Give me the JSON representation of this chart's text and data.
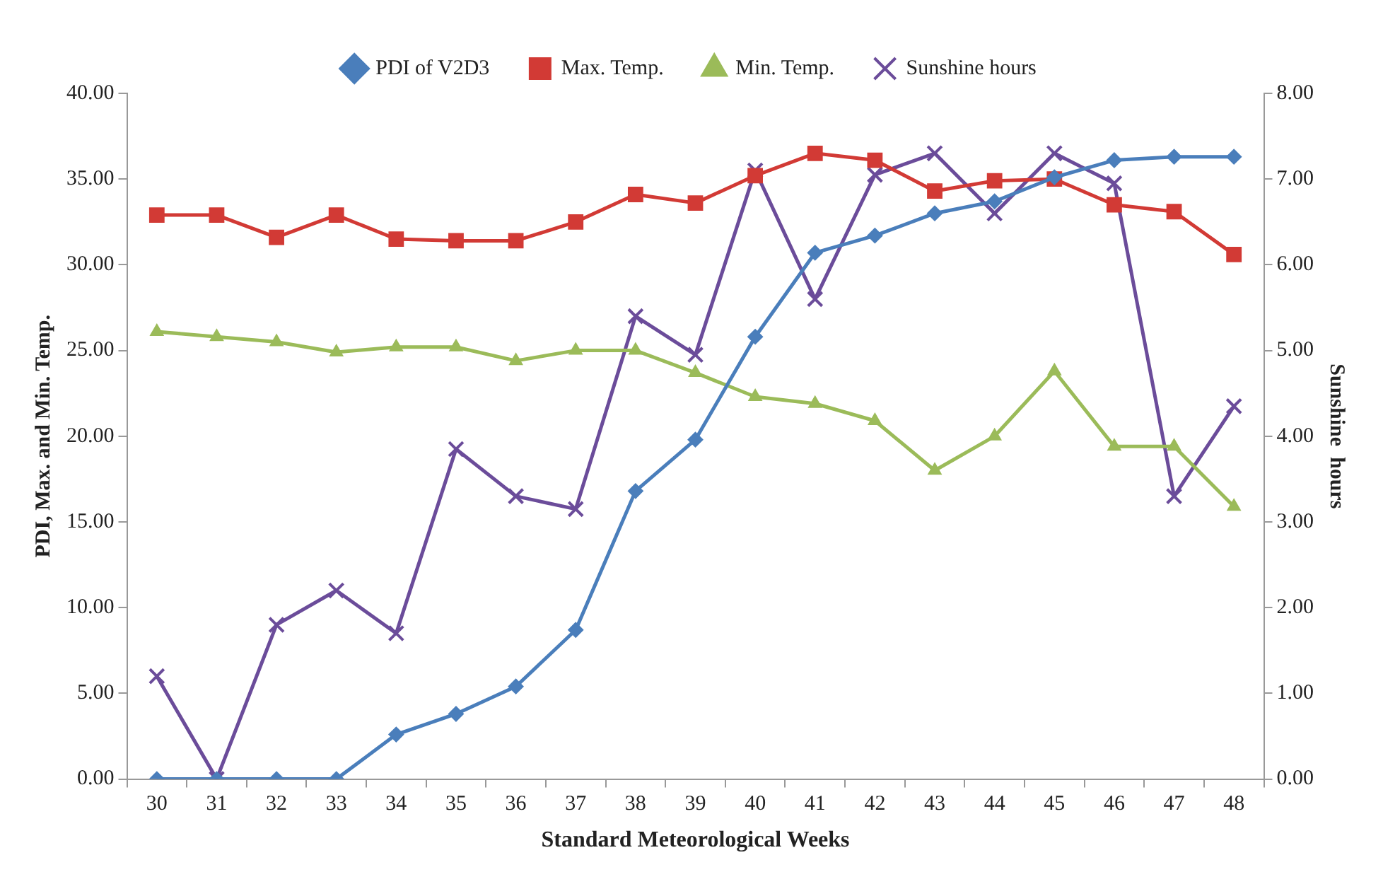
{
  "chart_data": {
    "type": "line",
    "xlabel": "Standard Meteorological Weeks",
    "ylabel": "PDI, Max. and Min. Temp.",
    "y2label": "Sunshine  hours",
    "categories": [
      "30",
      "31",
      "32",
      "33",
      "34",
      "35",
      "36",
      "37",
      "38",
      "39",
      "40",
      "41",
      "42",
      "43",
      "44",
      "45",
      "46",
      "47",
      "48"
    ],
    "series": [
      {
        "name": "PDI of V2D3",
        "color": "#4a7ebb",
        "marker": "diamond",
        "values": [
          0,
          0,
          0,
          0,
          2.6,
          3.8,
          5.4,
          8.7,
          16.8,
          19.8,
          25.8,
          30.7,
          31.7,
          33.0,
          33.7,
          35.1,
          36.1,
          36.3,
          36.3
        ]
      },
      {
        "name": "Max. Temp.",
        "color": "#d23a35",
        "marker": "square",
        "values": [
          32.9,
          32.9,
          31.6,
          32.9,
          31.5,
          31.4,
          31.4,
          32.5,
          34.1,
          33.6,
          35.2,
          36.5,
          36.1,
          34.3,
          34.9,
          35.0,
          33.5,
          33.1,
          30.6
        ]
      },
      {
        "name": "Min. Temp.",
        "color": "#9bbb59",
        "marker": "triangle",
        "values": [
          26.1,
          25.8,
          25.5,
          24.9,
          25.2,
          25.2,
          24.4,
          25.0,
          25.0,
          23.7,
          22.3,
          21.9,
          20.9,
          18.0,
          20.0,
          23.8,
          19.4,
          19.4,
          15.9
        ]
      },
      {
        "name": "Sunshine hours",
        "color": "#6b4c9a",
        "marker": "cross",
        "axis": "y2",
        "values": [
          1.2,
          0,
          1.8,
          2.2,
          1.7,
          3.85,
          3.3,
          3.15,
          5.4,
          4.95,
          7.1,
          5.6,
          7.05,
          7.3,
          6.6,
          7.3,
          6.95,
          3.3,
          4.35
        ]
      }
    ],
    "ylim": [
      0,
      40
    ],
    "yticks": [
      {
        "value": 0,
        "label": "0.00"
      },
      {
        "value": 5,
        "label": "5.00"
      },
      {
        "value": 10,
        "label": "10.00"
      },
      {
        "value": 15,
        "label": "15.00"
      },
      {
        "value": 20,
        "label": "20.00"
      },
      {
        "value": 25,
        "label": "25.00"
      },
      {
        "value": 30,
        "label": "30.00"
      },
      {
        "value": 35,
        "label": "35.00"
      },
      {
        "value": 40,
        "label": "40.00"
      }
    ],
    "y2lim": [
      0,
      8
    ],
    "y2ticks": [
      {
        "value": 0,
        "label": "0.00"
      },
      {
        "value": 1,
        "label": "1.00"
      },
      {
        "value": 2,
        "label": "2.00"
      },
      {
        "value": 3,
        "label": "3.00"
      },
      {
        "value": 4,
        "label": "4.00"
      },
      {
        "value": 5,
        "label": "5.00"
      },
      {
        "value": 6,
        "label": "6.00"
      },
      {
        "value": 7,
        "label": "7.00"
      },
      {
        "value": 8,
        "label": "8.00"
      }
    ],
    "grid": false,
    "legend": "top",
    "line_style": "solid"
  }
}
